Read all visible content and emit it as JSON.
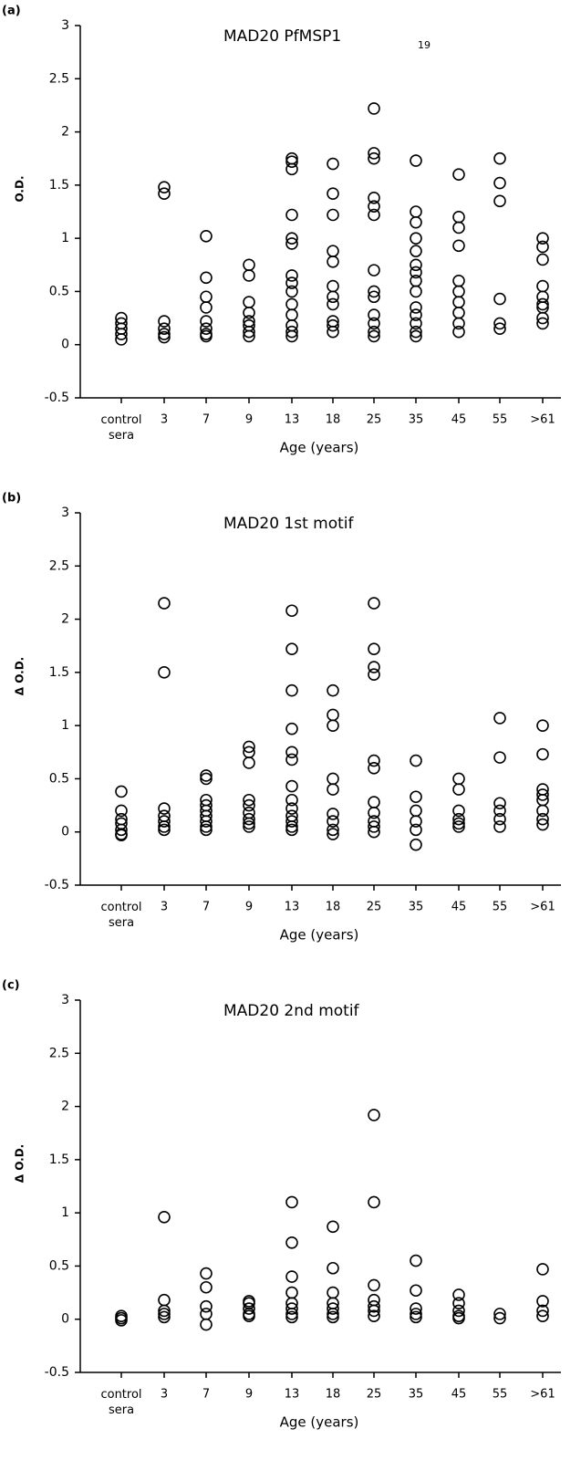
{
  "chart_data": [
    {
      "type": "strip",
      "panel_label": "(a)",
      "title": "MAD20 PfMSP1",
      "title_subscript": "19",
      "ylabel": "O.D.",
      "xlabel": "Age (years)",
      "color": "#000000",
      "categories": [
        "control sera",
        "3",
        "7",
        "9",
        "13",
        "18",
        "25",
        "35",
        "45",
        "55",
        ">61"
      ],
      "values": [
        [
          0.25,
          0.2,
          0.15,
          0.1,
          0.05
        ],
        [
          1.48,
          1.42,
          0.22,
          0.15,
          0.1,
          0.07
        ],
        [
          1.02,
          0.63,
          0.45,
          0.35,
          0.22,
          0.15,
          0.1,
          0.08
        ],
        [
          0.75,
          0.65,
          0.4,
          0.3,
          0.22,
          0.18,
          0.12,
          0.08
        ],
        [
          1.75,
          1.72,
          1.65,
          1.22,
          1.0,
          0.95,
          0.65,
          0.58,
          0.5,
          0.38,
          0.28,
          0.18,
          0.12,
          0.08
        ],
        [
          1.7,
          1.42,
          1.22,
          0.88,
          0.78,
          0.55,
          0.45,
          0.38,
          0.22,
          0.18,
          0.12
        ],
        [
          2.22,
          1.8,
          1.75,
          1.38,
          1.3,
          1.22,
          0.7,
          0.5,
          0.45,
          0.28,
          0.2,
          0.12,
          0.08
        ],
        [
          1.73,
          1.25,
          1.15,
          1.0,
          0.88,
          0.75,
          0.68,
          0.6,
          0.5,
          0.35,
          0.28,
          0.2,
          0.12,
          0.08
        ],
        [
          1.6,
          1.2,
          1.1,
          0.93,
          0.6,
          0.5,
          0.4,
          0.3,
          0.2,
          0.12
        ],
        [
          1.75,
          1.52,
          1.35,
          0.43,
          0.2,
          0.15
        ],
        [
          1.0,
          0.92,
          0.8,
          0.55,
          0.45,
          0.38,
          0.35,
          0.25,
          0.2
        ]
      ],
      "ylim": [
        -0.5,
        3
      ],
      "yticks": [
        -0.5,
        0,
        0.5,
        1,
        1.5,
        2,
        2.5,
        3
      ]
    },
    {
      "type": "strip",
      "panel_label": "(b)",
      "title": "MAD20 1st motif",
      "ylabel": "Δ O.D.",
      "xlabel": "Age (years)",
      "color": "#000000",
      "categories": [
        "control sera",
        "3",
        "7",
        "9",
        "13",
        "18",
        "25",
        "35",
        "45",
        "55",
        ">61"
      ],
      "values": [
        [
          0.38,
          0.2,
          0.12,
          0.08,
          0.02,
          -0.02,
          -0.03
        ],
        [
          2.15,
          1.5,
          0.22,
          0.15,
          0.1,
          0.05,
          0.02
        ],
        [
          0.53,
          0.5,
          0.3,
          0.25,
          0.2,
          0.15,
          0.1,
          0.05,
          0.02
        ],
        [
          0.8,
          0.75,
          0.65,
          0.3,
          0.25,
          0.18,
          0.12,
          0.08,
          0.05
        ],
        [
          2.08,
          1.72,
          1.33,
          0.97,
          0.75,
          0.68,
          0.43,
          0.3,
          0.22,
          0.15,
          0.1,
          0.05,
          0.02
        ],
        [
          1.33,
          1.1,
          1.0,
          0.5,
          0.4,
          0.17,
          0.1,
          0.02,
          -0.02
        ],
        [
          2.15,
          1.72,
          1.55,
          1.48,
          0.67,
          0.6,
          0.28,
          0.18,
          0.1,
          0.05,
          0.0
        ],
        [
          0.67,
          0.33,
          0.2,
          0.1,
          0.02,
          -0.12
        ],
        [
          0.5,
          0.4,
          0.2,
          0.12,
          0.08,
          0.05
        ],
        [
          1.07,
          0.7,
          0.27,
          0.2,
          0.12,
          0.05
        ],
        [
          1.0,
          0.73,
          0.4,
          0.35,
          0.3,
          0.2,
          0.12,
          0.07
        ]
      ],
      "ylim": [
        -0.5,
        3
      ],
      "yticks": [
        -0.5,
        0,
        0.5,
        1,
        1.5,
        2,
        2.5,
        3
      ]
    },
    {
      "type": "strip",
      "panel_label": "(c)",
      "title": "MAD20 2nd motif",
      "ylabel": "Δ O.D.",
      "xlabel": "Age (years)",
      "color": "#000000",
      "categories": [
        "control sera",
        "3",
        "7",
        "9",
        "13",
        "18",
        "25",
        "35",
        "45",
        "55",
        ">61"
      ],
      "values": [
        [
          0.03,
          0.01,
          -0.01
        ],
        [
          0.96,
          0.18,
          0.08,
          0.05,
          0.02
        ],
        [
          0.43,
          0.3,
          0.12,
          0.05,
          -0.05
        ],
        [
          0.17,
          0.15,
          0.1,
          0.05,
          0.03
        ],
        [
          1.1,
          0.72,
          0.4,
          0.25,
          0.15,
          0.1,
          0.05,
          0.02
        ],
        [
          0.87,
          0.48,
          0.25,
          0.15,
          0.1,
          0.05,
          0.02
        ],
        [
          1.92,
          1.1,
          0.32,
          0.18,
          0.12,
          0.08,
          0.03
        ],
        [
          0.55,
          0.27,
          0.1,
          0.05,
          0.02
        ],
        [
          0.23,
          0.15,
          0.08,
          0.03,
          0.01
        ],
        [
          0.05,
          0.01
        ],
        [
          0.47,
          0.17,
          0.08,
          0.03
        ]
      ],
      "ylim": [
        -0.5,
        3
      ],
      "yticks": [
        -0.5,
        0,
        0.5,
        1,
        1.5,
        2,
        2.5,
        3
      ]
    }
  ]
}
